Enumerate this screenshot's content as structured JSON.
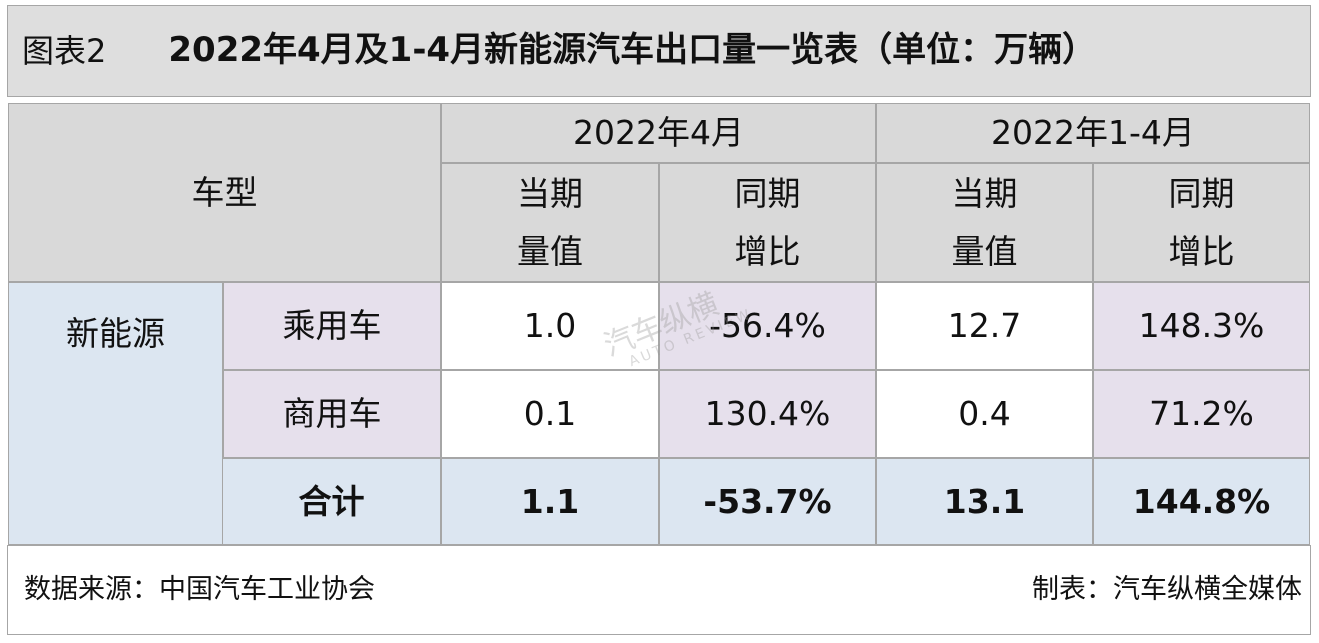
{
  "title_bar": {
    "label": "图表2",
    "title": "2022年4月及1-4月新能源汽车出口量一览表（单位：万辆）"
  },
  "table": {
    "corner": "车型",
    "periods": [
      "2022年4月",
      "2022年1-4月"
    ],
    "columns": [
      "当期\n量值",
      "同期\n增比",
      "当期\n量值",
      "同期\n增比"
    ],
    "group": "新能源",
    "rows": [
      [
        "乘用车",
        "1.0",
        "-56.4%",
        "12.7",
        "148.3%"
      ],
      [
        "商用车",
        "0.1",
        "130.4%",
        "0.4",
        "71.2%"
      ]
    ],
    "total": [
      "合计",
      "1.1",
      "-53.7%",
      "13.1",
      "144.8%"
    ]
  },
  "watermark": {
    "brand": "汽车纵横",
    "sub": "AUTO REVIEW"
  },
  "footer": {
    "source": "数据来源：中国汽车工业协会",
    "maker": "制表：汽车纵横全媒体"
  }
}
